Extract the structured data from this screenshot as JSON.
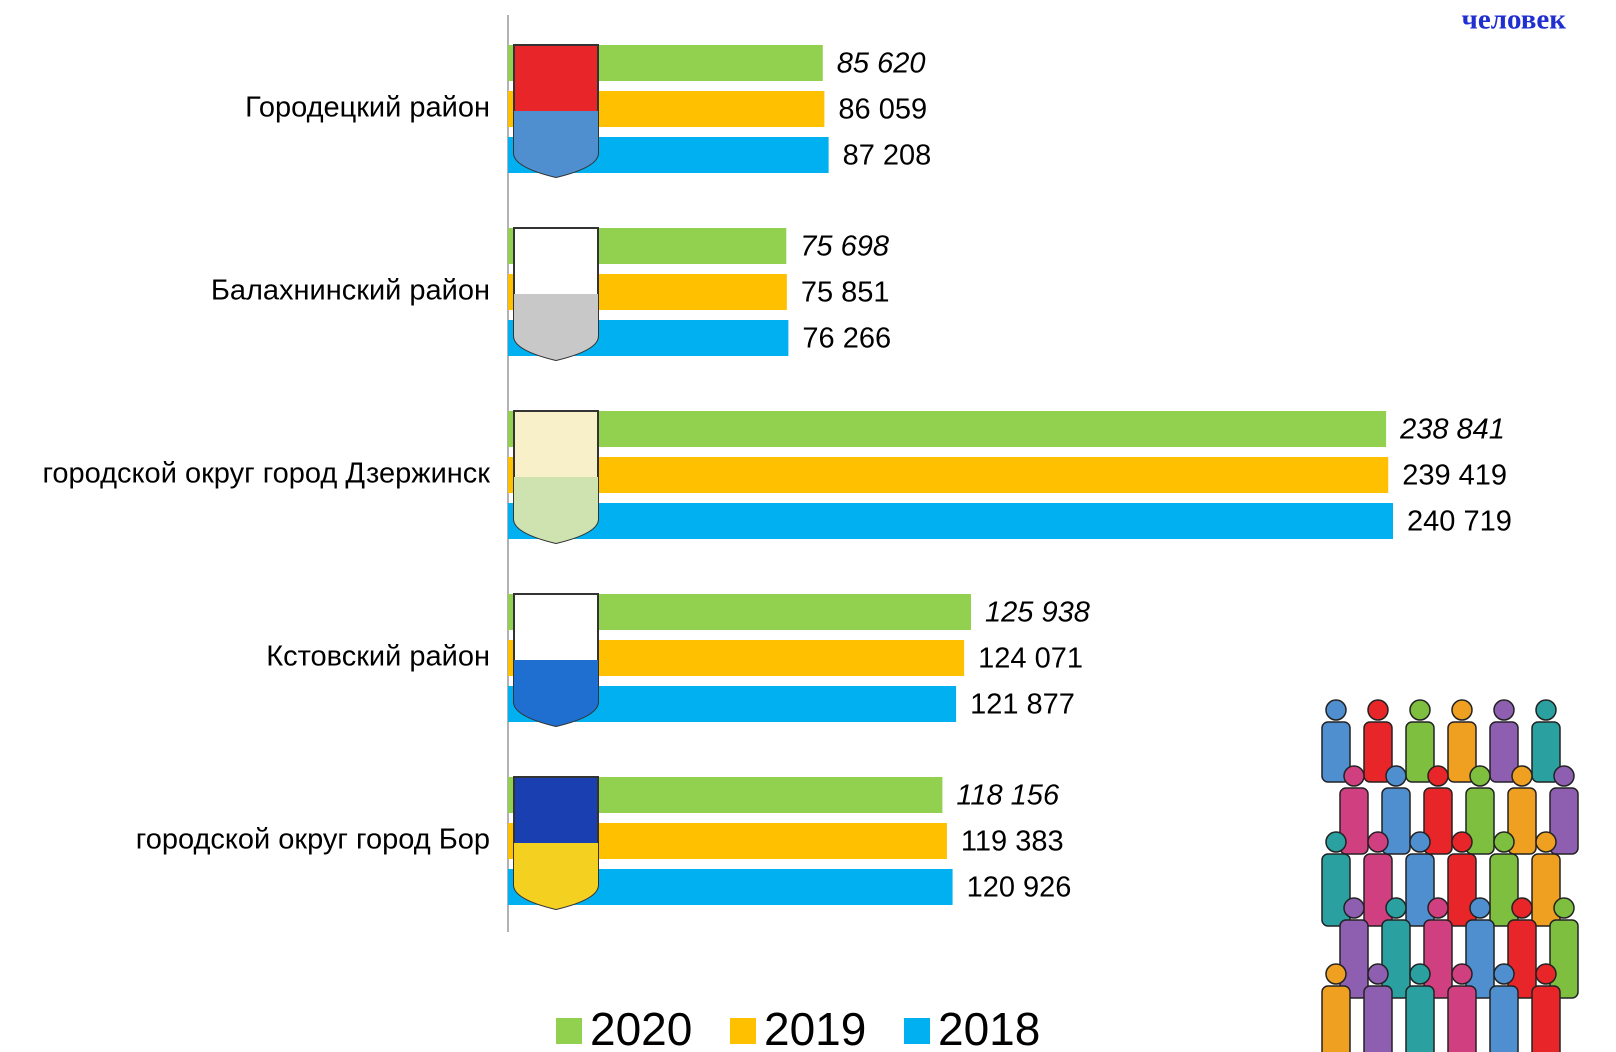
{
  "chart_data": {
    "type": "bar",
    "orientation": "horizontal",
    "unit_label": "человек",
    "categories": [
      "Городецкий район",
      "Балахнинский район",
      "городской округ город Дзержинск",
      "Кстовский район",
      "городской округ город Бор"
    ],
    "series": [
      {
        "name": "2020",
        "color": "#92d050",
        "values": [
          85620,
          75698,
          238841,
          125938,
          118156
        ],
        "value_labels": [
          "85 620",
          "75 698",
          "238 841",
          "125 938",
          "118 156"
        ]
      },
      {
        "name": "2019",
        "color": "#ffc000",
        "values": [
          86059,
          75851,
          239419,
          124071,
          119383
        ],
        "value_labels": [
          "86 059",
          "75 851",
          "239 419",
          "124 071",
          "119 383"
        ]
      },
      {
        "name": "2018",
        "color": "#00b0f0",
        "values": [
          87208,
          76266,
          240719,
          121877,
          120926
        ],
        "value_labels": [
          "87 208",
          "76 266",
          "240 719",
          "121 877",
          "120 926"
        ]
      }
    ],
    "legend": "bottom"
  }
}
